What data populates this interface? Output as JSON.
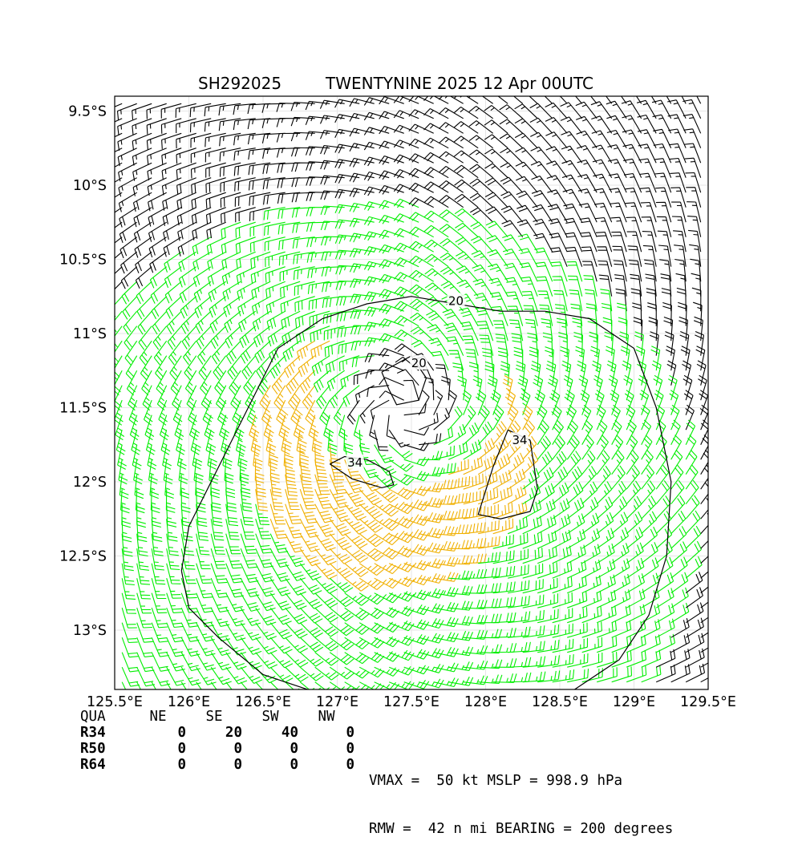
{
  "chart_data": {
    "type": "wind-barb-map",
    "storm_id": "SH292025",
    "storm_label": "TWENTYNINE 2025 12 Apr 00UTC",
    "x_range": [
      125.5,
      129.5
    ],
    "y_range": [
      -13.4,
      -9.4
    ],
    "x_ticks": [
      {
        "value": 125.5,
        "label": "125.5°E"
      },
      {
        "value": 126.0,
        "label": "126°E"
      },
      {
        "value": 126.5,
        "label": "126.5°E"
      },
      {
        "value": 127.0,
        "label": "127°E"
      },
      {
        "value": 127.5,
        "label": "127.5°E"
      },
      {
        "value": 128.0,
        "label": "128°E"
      },
      {
        "value": 128.5,
        "label": "128.5°E"
      },
      {
        "value": 129.0,
        "label": "129°E"
      },
      {
        "value": 129.5,
        "label": "129.5°E"
      }
    ],
    "y_ticks": [
      {
        "value": -9.5,
        "label": "9.5°S"
      },
      {
        "value": -10.0,
        "label": "10°S"
      },
      {
        "value": -10.5,
        "label": "10.5°S"
      },
      {
        "value": -11.0,
        "label": "11°S"
      },
      {
        "value": -11.5,
        "label": "11.5°S"
      },
      {
        "value": -12.0,
        "label": "12°S"
      },
      {
        "value": -12.5,
        "label": "12.5°S"
      },
      {
        "value": -13.0,
        "label": "13°S"
      }
    ],
    "grid": true,
    "hemisphere": "south",
    "center": {
      "lon": 127.44,
      "lat": -11.53
    },
    "vmax_kt": 50,
    "rmw_nmi": 42,
    "barb_spacing_deg": 0.1,
    "color_thresholds_kt": [
      20,
      34
    ],
    "barb_colors": {
      "below_20": "#000000",
      "from_20": "#00ee00",
      "from_34": "#f0b000"
    },
    "contours": [
      {
        "level": 20,
        "label": "20",
        "label_at": {
          "lon": 127.8,
          "lat": -10.78
        },
        "lon": [
          125.95,
          126.0,
          126.3,
          126.6,
          126.9,
          127.2,
          127.5,
          127.8,
          128.1,
          128.4,
          128.7,
          129.0,
          129.15,
          129.25,
          129.22,
          129.1,
          128.9,
          128.6,
          128.3,
          128.0,
          127.7,
          127.4,
          127.1,
          126.8,
          126.5,
          126.2,
          126.0,
          125.95
        ],
        "lat": [
          -12.6,
          -12.3,
          -11.7,
          -11.1,
          -10.9,
          -10.8,
          -10.75,
          -10.8,
          -10.85,
          -10.85,
          -10.9,
          -11.1,
          -11.5,
          -12.0,
          -12.5,
          -12.9,
          -13.2,
          -13.4,
          -13.45,
          -13.45,
          -13.45,
          -13.45,
          -13.45,
          -13.4,
          -13.3,
          -13.05,
          -12.85,
          -12.6
        ]
      },
      {
        "level": 20,
        "label": "20",
        "label_at": {
          "lon": 127.55,
          "lat": -11.2
        },
        "lon": [
          127.3,
          127.5,
          127.6,
          127.55,
          127.4,
          127.35,
          127.3
        ],
        "lat": [
          -11.26,
          -11.15,
          -11.3,
          -11.45,
          -11.48,
          -11.38,
          -11.26
        ]
      },
      {
        "level": 34,
        "label": "34",
        "label_at": {
          "lon": 127.12,
          "lat": -11.87
        },
        "lon": [
          126.95,
          127.05,
          127.2,
          127.35,
          127.38,
          127.3,
          127.1,
          126.95
        ],
        "lat": [
          -11.88,
          -11.83,
          -11.85,
          -11.93,
          -12.02,
          -12.04,
          -11.98,
          -11.88
        ]
      },
      {
        "level": 34,
        "label": "34",
        "label_at": {
          "lon": 128.23,
          "lat": -11.72
        },
        "lon": [
          128.15,
          128.3,
          128.35,
          128.3,
          128.1,
          127.95,
          128.05,
          128.15
        ],
        "lat": [
          -11.65,
          -11.72,
          -12.05,
          -12.2,
          -12.25,
          -12.22,
          -11.9,
          -11.65
        ]
      }
    ]
  },
  "title": {
    "left": "SH292025",
    "right": "TWENTYNINE 2025 12 Apr 00UTC"
  },
  "radii_table": {
    "header": {
      "label": "QUA",
      "cols": [
        "NE",
        "SE",
        "SW",
        "NW"
      ]
    },
    "rows": [
      {
        "label": "R34",
        "values": [
          "0",
          "20",
          "40",
          "0"
        ]
      },
      {
        "label": "R50",
        "values": [
          "0",
          "0",
          "0",
          "0"
        ]
      },
      {
        "label": "R64",
        "values": [
          "0",
          "0",
          "0",
          "0"
        ]
      }
    ]
  },
  "summary": {
    "line1": "VMAX =  50 kt MSLP = 998.9 hPa",
    "line2": "RMW =  42 n mi BEARING = 200 degrees"
  }
}
